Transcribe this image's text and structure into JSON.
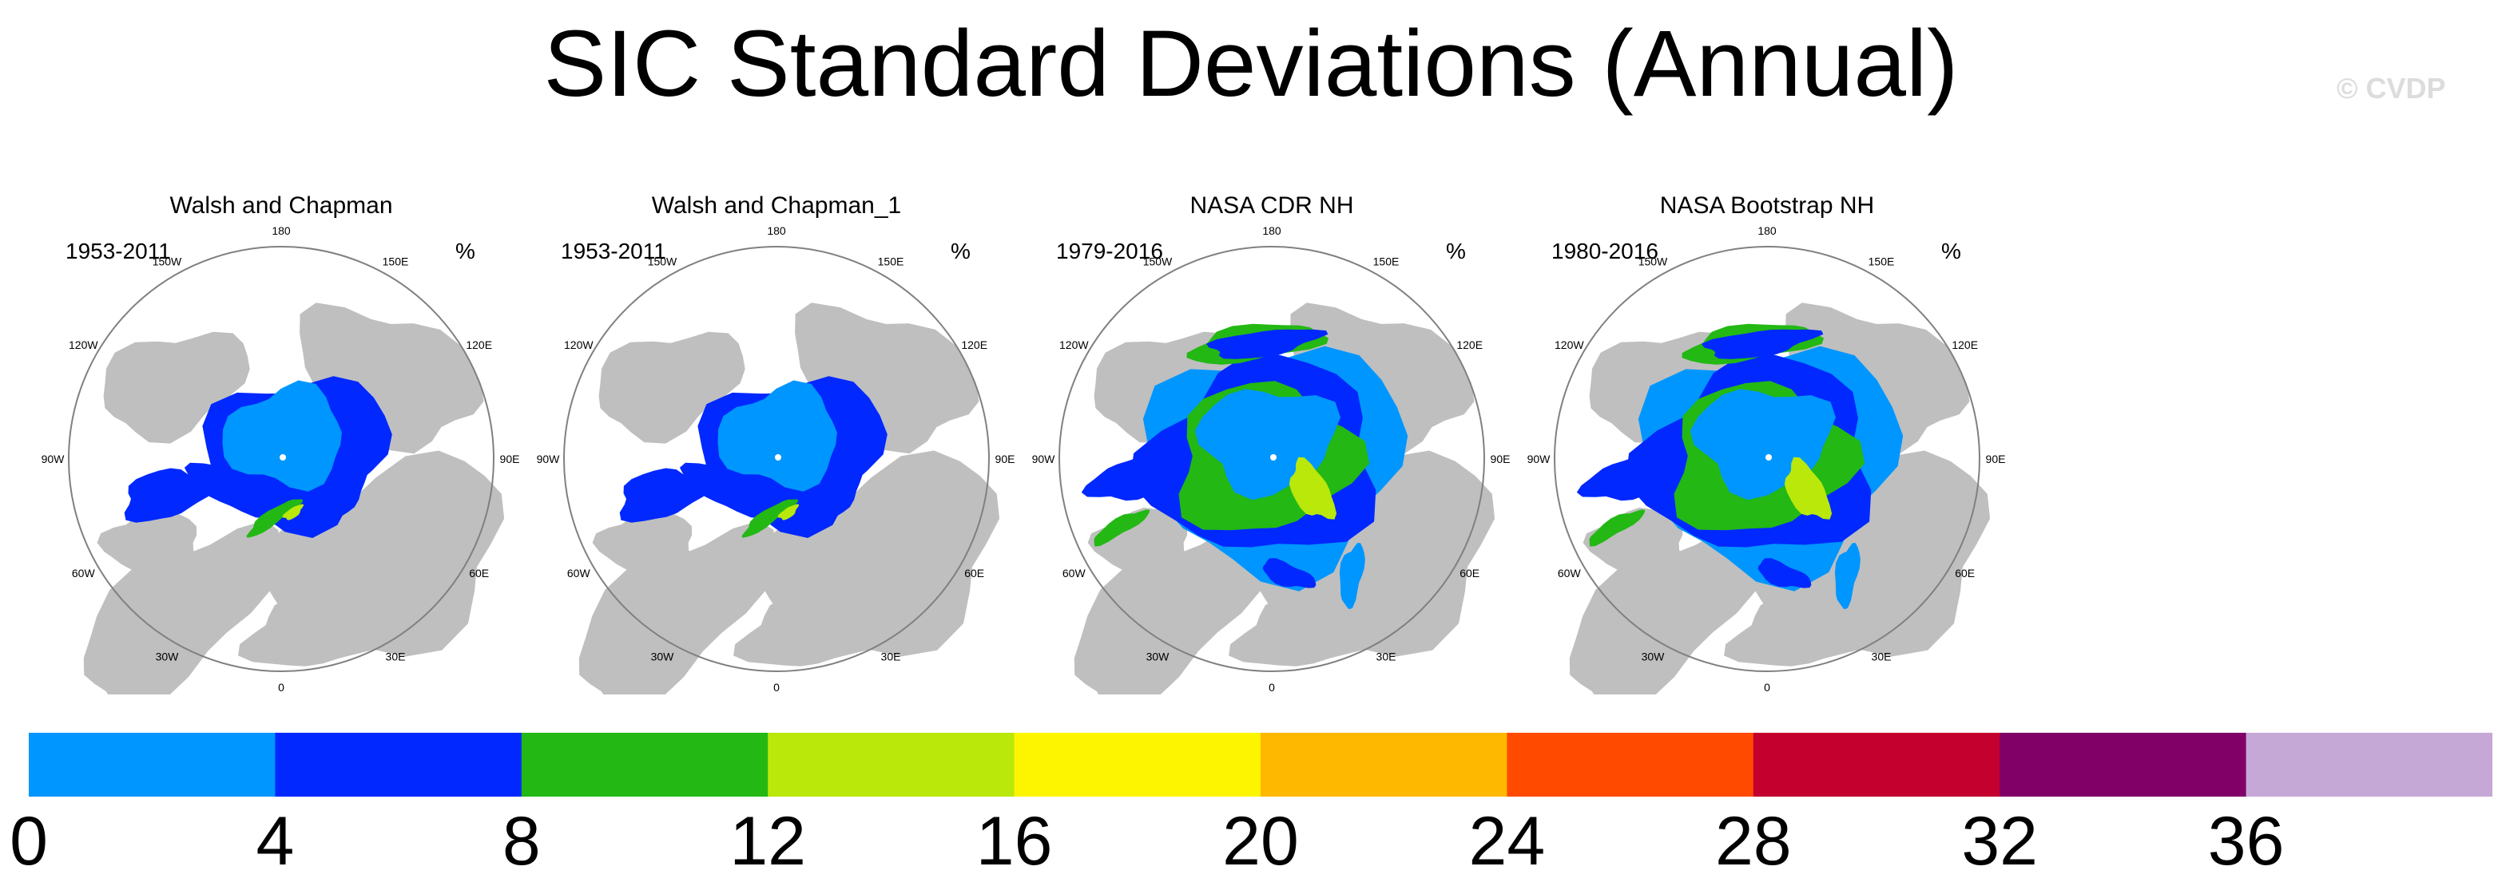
{
  "title": "SIC Standard Deviations (Annual)",
  "watermark": "© CVDP",
  "units": "%",
  "colorbar": {
    "ticks": [
      "0",
      "4",
      "8",
      "12",
      "16",
      "20",
      "24",
      "28",
      "32",
      "36"
    ],
    "colors": [
      "#0096ff",
      "#0028ff",
      "#23b814",
      "#b9e80a",
      "#fdf500",
      "#ffb800",
      "#ff4a00",
      "#c4002f",
      "#800068",
      "#c6a8d6"
    ]
  },
  "map_colors": {
    "land": "#bfbfbf",
    "ocean": "#ffffff",
    "outline": "#808080"
  },
  "longitude_labels": [
    "180",
    "150E",
    "120E",
    "90E",
    "60E",
    "30E",
    "0",
    "30W",
    "60W",
    "90W",
    "120W",
    "150W"
  ],
  "chart_data": [
    {
      "type": "heatmap",
      "title": "Walsh and Chapman",
      "period": "1953-2011",
      "units": "%",
      "levels": [
        0,
        4,
        8,
        12,
        16,
        20,
        24,
        28,
        32,
        36,
        40
      ],
      "pattern": "weak"
    },
    {
      "type": "heatmap",
      "title": "Walsh and Chapman_1",
      "period": "1953-2011",
      "units": "%",
      "levels": [
        0,
        4,
        8,
        12,
        16,
        20,
        24,
        28,
        32,
        36,
        40
      ],
      "pattern": "weak"
    },
    {
      "type": "heatmap",
      "title": "NASA CDR NH",
      "period": "1979-2016",
      "units": "%",
      "levels": [
        0,
        4,
        8,
        12,
        16,
        20,
        24,
        28,
        32,
        36,
        40
      ],
      "pattern": "strong"
    },
    {
      "type": "heatmap",
      "title": "NASA Bootstrap NH",
      "period": "1980-2016",
      "units": "%",
      "levels": [
        0,
        4,
        8,
        12,
        16,
        20,
        24,
        28,
        32,
        36,
        40
      ],
      "pattern": "strong"
    }
  ]
}
